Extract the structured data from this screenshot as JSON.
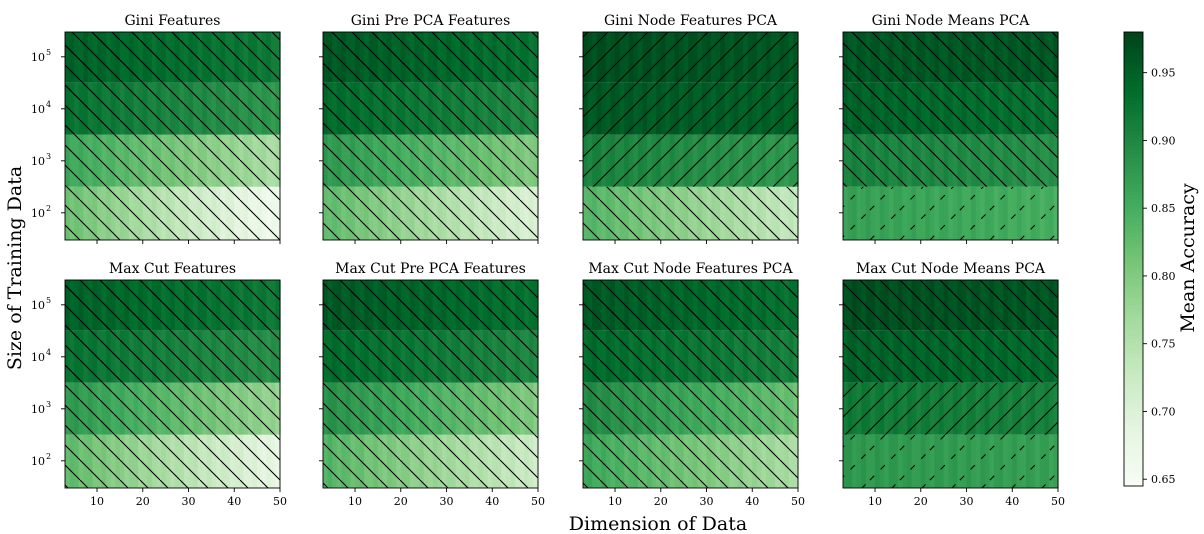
{
  "figure": {
    "xlabel": "Dimension of Data",
    "ylabel": "Size of Training Data",
    "colorbar_label": "Mean Accuracy",
    "colormap": "Greens",
    "colorbar_ticks": [
      "0.65",
      "0.70",
      "0.75",
      "0.80",
      "0.85",
      "0.90",
      "0.95"
    ],
    "colorbar_range": [
      0.645,
      0.98
    ],
    "x_ticks": [
      "10",
      "20",
      "30",
      "40",
      "50"
    ],
    "y_ticks": [
      "10",
      "10",
      "10",
      "10"
    ],
    "y_tick_exponents": [
      "2",
      "3",
      "4",
      "5"
    ]
  },
  "chart_data": [
    {
      "type": "heatmap",
      "title": "Gini Features",
      "xlabel": "",
      "ylabel": "",
      "x_range": [
        3,
        50
      ],
      "y_scale": "log",
      "y_range": [
        30,
        300000
      ],
      "rows": [
        {
          "training_size": 100000,
          "acc_low_dim": 0.95,
          "acc_high_dim": 0.92,
          "hatch": "\\\\"
        },
        {
          "training_size": 10000,
          "acc_low_dim": 0.93,
          "acc_high_dim": 0.88,
          "hatch": "\\\\"
        },
        {
          "training_size": 1000,
          "acc_low_dim": 0.86,
          "acc_high_dim": 0.76,
          "hatch": "\\\\"
        },
        {
          "training_size": 100,
          "acc_low_dim": 0.82,
          "acc_high_dim": 0.66,
          "hatch": "\\\\"
        }
      ]
    },
    {
      "type": "heatmap",
      "title": "Gini Pre PCA Features",
      "xlabel": "",
      "ylabel": "",
      "x_range": [
        3,
        50
      ],
      "y_scale": "log",
      "y_range": [
        30,
        300000
      ],
      "rows": [
        {
          "training_size": 100000,
          "acc_low_dim": 0.96,
          "acc_high_dim": 0.93,
          "hatch": "\\\\"
        },
        {
          "training_size": 10000,
          "acc_low_dim": 0.94,
          "acc_high_dim": 0.9,
          "hatch": "\\\\"
        },
        {
          "training_size": 1000,
          "acc_low_dim": 0.88,
          "acc_high_dim": 0.8,
          "hatch": "\\\\"
        },
        {
          "training_size": 100,
          "acc_low_dim": 0.83,
          "acc_high_dim": 0.7,
          "hatch": "\\\\"
        }
      ]
    },
    {
      "type": "heatmap",
      "title": "Gini Node Features PCA",
      "xlabel": "",
      "ylabel": "",
      "x_range": [
        3,
        50
      ],
      "y_scale": "log",
      "y_range": [
        30,
        300000
      ],
      "rows": [
        {
          "training_size": 100000,
          "acc_low_dim": 0.97,
          "acc_high_dim": 0.96,
          "hatch": "//"
        },
        {
          "training_size": 10000,
          "acc_low_dim": 0.96,
          "acc_high_dim": 0.95,
          "hatch": "//"
        },
        {
          "training_size": 1000,
          "acc_low_dim": 0.91,
          "acc_high_dim": 0.88,
          "hatch": "//"
        },
        {
          "training_size": 100,
          "acc_low_dim": 0.84,
          "acc_high_dim": 0.73,
          "hatch": "\\\\"
        }
      ]
    },
    {
      "type": "heatmap",
      "title": "Gini Node Means PCA",
      "xlabel": "",
      "ylabel": "",
      "x_range": [
        3,
        50
      ],
      "y_scale": "log",
      "y_range": [
        30,
        300000
      ],
      "rows": [
        {
          "training_size": 100000,
          "acc_low_dim": 0.96,
          "acc_high_dim": 0.96,
          "hatch": "\\\\"
        },
        {
          "training_size": 10000,
          "acc_low_dim": 0.95,
          "acc_high_dim": 0.93,
          "hatch": "\\\\"
        },
        {
          "training_size": 1000,
          "acc_low_dim": 0.91,
          "acc_high_dim": 0.89,
          "hatch": "\\\\"
        },
        {
          "training_size": 100,
          "acc_low_dim": 0.87,
          "acc_high_dim": 0.85,
          "hatch": "/"
        }
      ]
    },
    {
      "type": "heatmap",
      "title": "Max Cut Features",
      "xlabel": "",
      "ylabel": "",
      "x_range": [
        3,
        50
      ],
      "y_scale": "log",
      "y_range": [
        30,
        300000
      ],
      "rows": [
        {
          "training_size": 100000,
          "acc_low_dim": 0.95,
          "acc_high_dim": 0.92,
          "hatch": "\\\\"
        },
        {
          "training_size": 10000,
          "acc_low_dim": 0.93,
          "acc_high_dim": 0.89,
          "hatch": "\\\\"
        },
        {
          "training_size": 1000,
          "acc_low_dim": 0.88,
          "acc_high_dim": 0.78,
          "hatch": "\\\\"
        },
        {
          "training_size": 100,
          "acc_low_dim": 0.83,
          "acc_high_dim": 0.68,
          "hatch": "\\\\"
        }
      ]
    },
    {
      "type": "heatmap",
      "title": "Max Cut Pre PCA Features",
      "xlabel": "",
      "ylabel": "",
      "x_range": [
        3,
        50
      ],
      "y_scale": "log",
      "y_range": [
        30,
        300000
      ],
      "rows": [
        {
          "training_size": 100000,
          "acc_low_dim": 0.96,
          "acc_high_dim": 0.93,
          "hatch": "\\\\"
        },
        {
          "training_size": 10000,
          "acc_low_dim": 0.94,
          "acc_high_dim": 0.9,
          "hatch": "\\\\"
        },
        {
          "training_size": 1000,
          "acc_low_dim": 0.89,
          "acc_high_dim": 0.8,
          "hatch": "\\\\"
        },
        {
          "training_size": 100,
          "acc_low_dim": 0.84,
          "acc_high_dim": 0.72,
          "hatch": "\\\\"
        }
      ]
    },
    {
      "type": "heatmap",
      "title": "Max Cut Node Features PCA",
      "xlabel": "",
      "ylabel": "",
      "x_range": [
        3,
        50
      ],
      "y_scale": "log",
      "y_range": [
        30,
        300000
      ],
      "rows": [
        {
          "training_size": 100000,
          "acc_low_dim": 0.96,
          "acc_high_dim": 0.93,
          "hatch": "\\\\"
        },
        {
          "training_size": 10000,
          "acc_low_dim": 0.94,
          "acc_high_dim": 0.91,
          "hatch": "\\\\"
        },
        {
          "training_size": 1000,
          "acc_low_dim": 0.9,
          "acc_high_dim": 0.82,
          "hatch": "\\\\"
        },
        {
          "training_size": 100,
          "acc_low_dim": 0.86,
          "acc_high_dim": 0.76,
          "hatch": "\\\\"
        }
      ]
    },
    {
      "type": "heatmap",
      "title": "Max Cut Node Means PCA",
      "xlabel": "",
      "ylabel": "",
      "x_range": [
        3,
        50
      ],
      "y_scale": "log",
      "y_range": [
        30,
        300000
      ],
      "rows": [
        {
          "training_size": 100000,
          "acc_low_dim": 0.97,
          "acc_high_dim": 0.96,
          "hatch": "\\\\"
        },
        {
          "training_size": 10000,
          "acc_low_dim": 0.95,
          "acc_high_dim": 0.94,
          "hatch": "\\\\"
        },
        {
          "training_size": 1000,
          "acc_low_dim": 0.92,
          "acc_high_dim": 0.91,
          "hatch": "//"
        },
        {
          "training_size": 100,
          "acc_low_dim": 0.88,
          "acc_high_dim": 0.87,
          "hatch": "/"
        }
      ]
    }
  ]
}
